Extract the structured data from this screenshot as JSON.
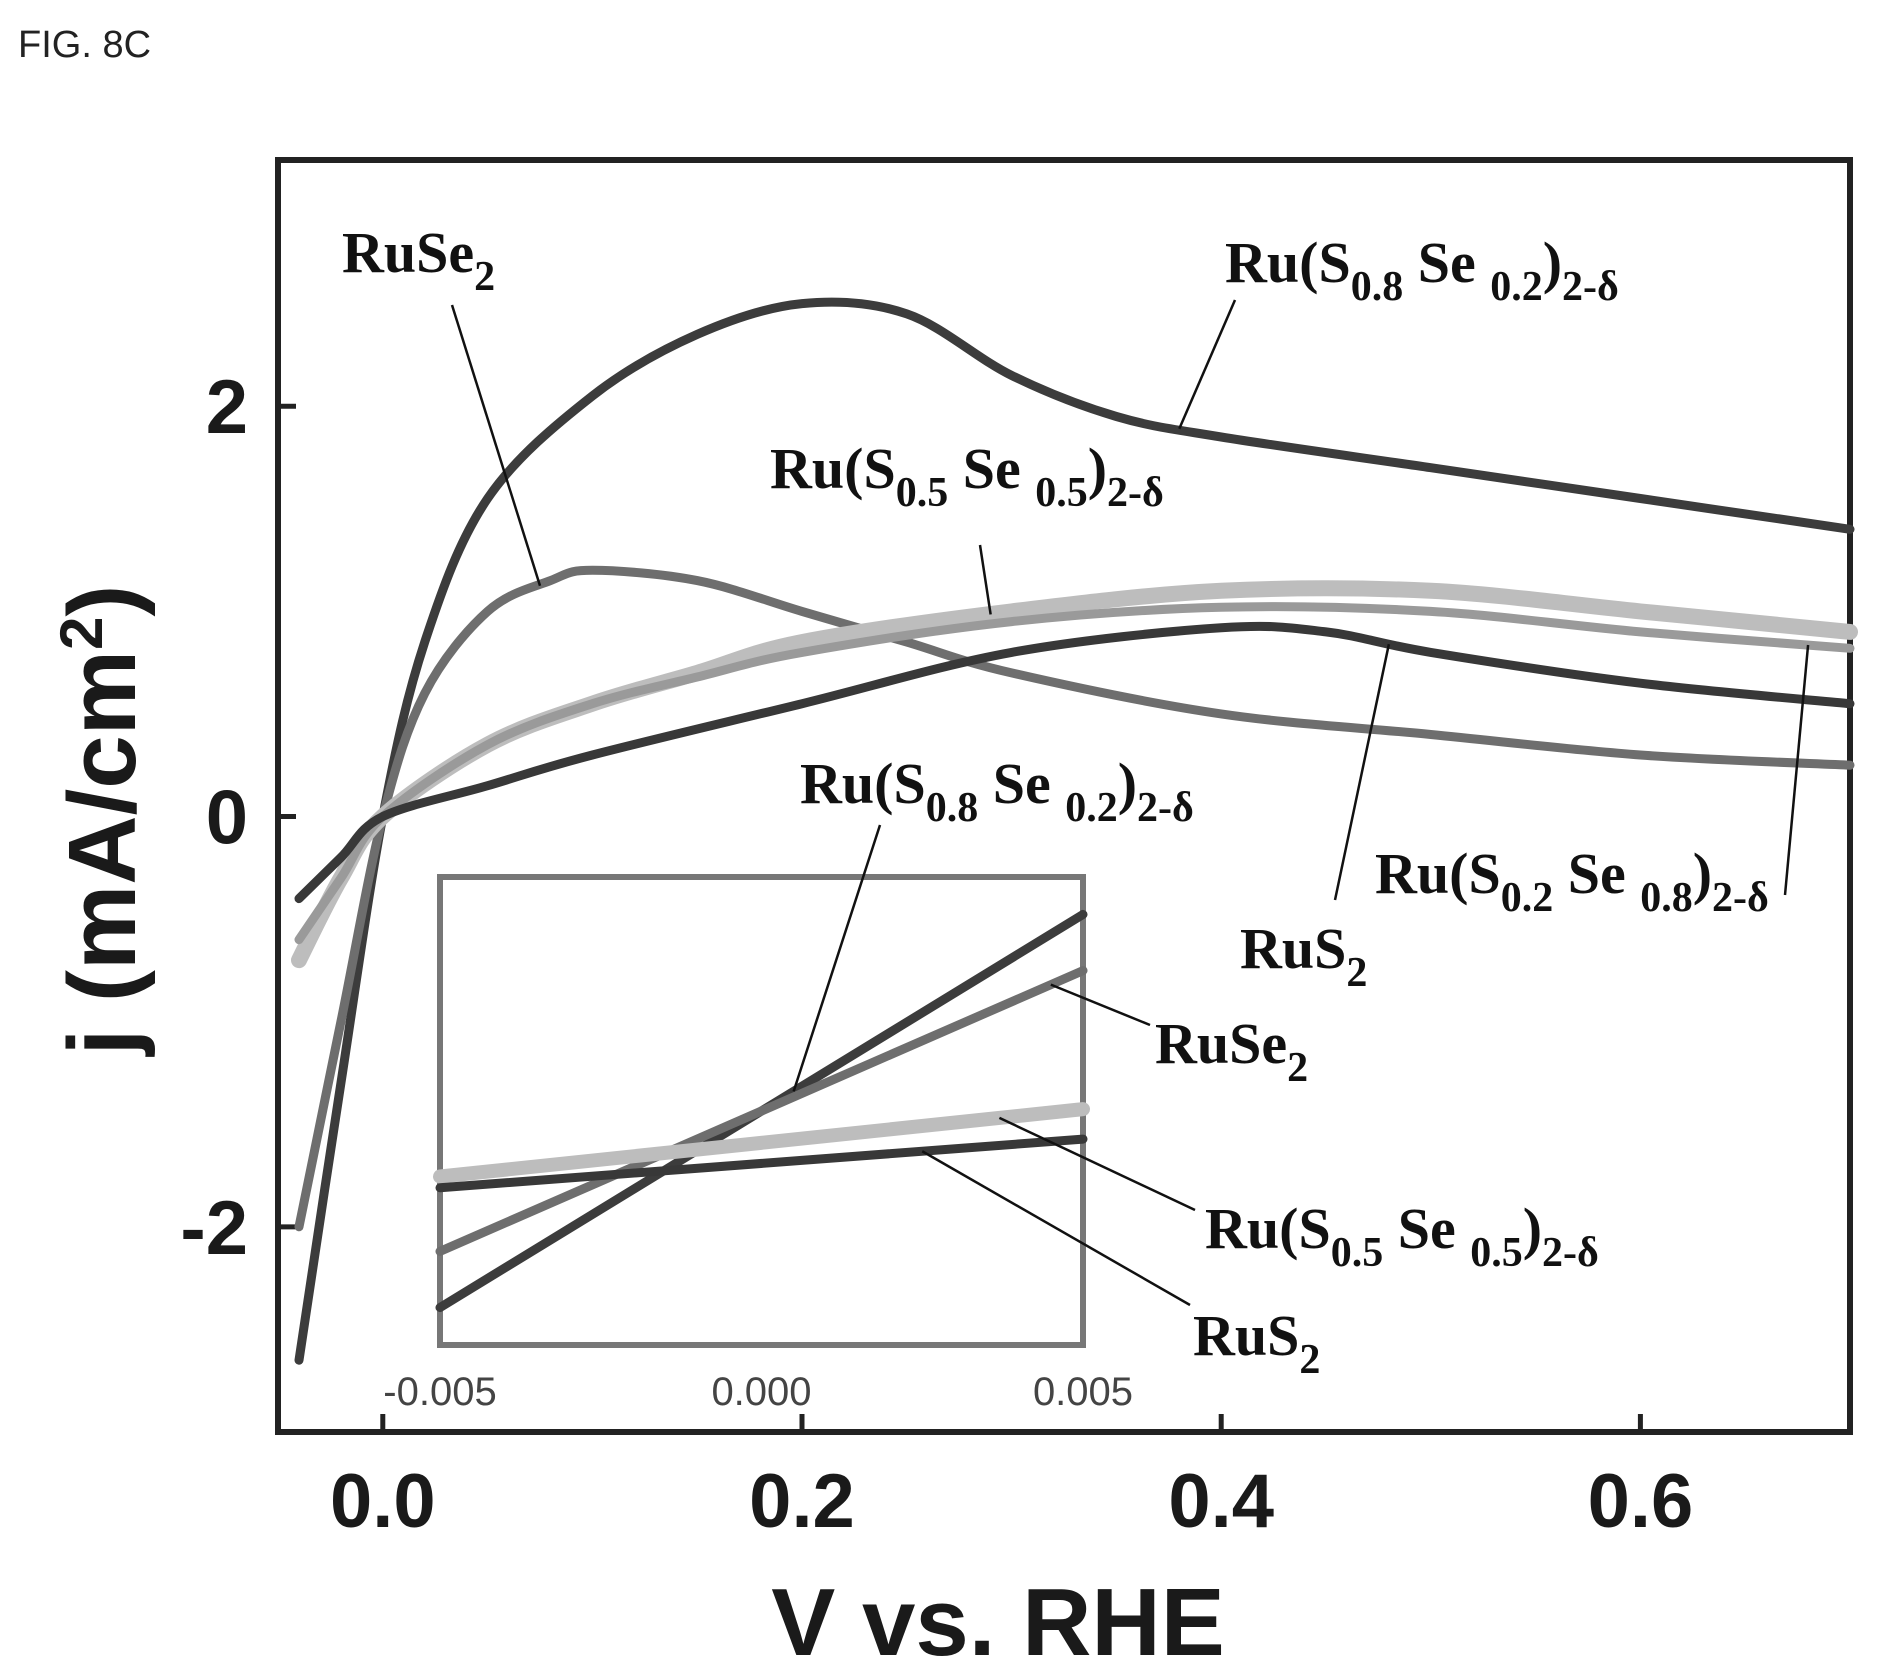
{
  "figure_label": "FIG. 8C",
  "colors": {
    "ruse2": "#6e6e6e",
    "rus2": "#383838",
    "ru_s08_se02": "#3c3c3c",
    "ru_s05_se05": "#bdbdbd",
    "ru_s02_se08": "#9a9a9a"
  },
  "chart_data": [
    {
      "type": "line",
      "title": "",
      "xlabel": "V vs. RHE",
      "ylabel": "j (mA/cm2)",
      "ylabel_parts": {
        "main": "j (mA/cm",
        "sup": "2",
        "close": ")"
      },
      "xlim": [
        -0.05,
        0.7
      ],
      "ylim": [
        -3,
        3.2
      ],
      "x_ticks": [
        0.0,
        0.2,
        0.4,
        0.6
      ],
      "x_tick_labels": [
        "0.0",
        "0.2",
        "0.4",
        "0.6"
      ],
      "y_ticks": [
        -2,
        0,
        2
      ],
      "y_tick_labels": [
        "-2",
        "0",
        "2"
      ],
      "grid": false,
      "legend": "none",
      "series": [
        {
          "key": "ru_s08_se02",
          "label": {
            "pre": "Ru(S",
            "s1": "0.8",
            "mid": " Se ",
            "s2": "0.2",
            "post": ")",
            "s3": "2-δ"
          },
          "x": [
            -0.04,
            -0.02,
            0.0,
            0.02,
            0.05,
            0.1,
            0.15,
            0.2,
            0.25,
            0.3,
            0.35,
            0.4,
            0.5,
            0.6,
            0.7
          ],
          "y": [
            -2.65,
            -1.3,
            0.0,
            0.85,
            1.55,
            2.05,
            2.35,
            2.5,
            2.45,
            2.15,
            1.95,
            1.85,
            1.7,
            1.55,
            1.4
          ]
        },
        {
          "key": "ruse2",
          "label": {
            "pre": "RuSe",
            "s1": "2"
          },
          "x": [
            -0.04,
            -0.02,
            0.0,
            0.02,
            0.05,
            0.08,
            0.1,
            0.15,
            0.2,
            0.25,
            0.3,
            0.4,
            0.5,
            0.6,
            0.7
          ],
          "y": [
            -2.0,
            -1.0,
            0.0,
            0.6,
            1.0,
            1.15,
            1.2,
            1.15,
            1.0,
            0.85,
            0.7,
            0.5,
            0.4,
            0.3,
            0.25
          ]
        },
        {
          "key": "ru_s05_se05",
          "label": {
            "pre": "Ru(S",
            "s1": "0.5",
            "mid": " Se ",
            "s2": "0.5",
            "post": ")",
            "s3": "2-δ"
          },
          "x": [
            -0.04,
            -0.02,
            0.0,
            0.05,
            0.1,
            0.15,
            0.2,
            0.3,
            0.4,
            0.5,
            0.6,
            0.7
          ],
          "y": [
            -0.7,
            -0.3,
            0.0,
            0.35,
            0.55,
            0.7,
            0.85,
            1.0,
            1.1,
            1.1,
            1.0,
            0.9
          ]
        },
        {
          "key": "ru_s02_se08",
          "label": {
            "pre": "Ru(S",
            "s1": "0.2",
            "mid": " Se ",
            "s2": "0.8",
            "post": ")",
            "s3": "2-δ"
          },
          "x": [
            -0.04,
            -0.02,
            0.0,
            0.05,
            0.1,
            0.15,
            0.2,
            0.3,
            0.4,
            0.5,
            0.6,
            0.7
          ],
          "y": [
            -0.6,
            -0.3,
            0.0,
            0.35,
            0.55,
            0.68,
            0.8,
            0.95,
            1.02,
            1.0,
            0.9,
            0.82
          ]
        },
        {
          "key": "rus2",
          "label": {
            "pre": "RuS",
            "s1": "2"
          },
          "x": [
            -0.04,
            -0.02,
            0.0,
            0.05,
            0.1,
            0.2,
            0.3,
            0.4,
            0.45,
            0.5,
            0.6,
            0.7
          ],
          "y": [
            -0.4,
            -0.2,
            0.0,
            0.15,
            0.3,
            0.55,
            0.8,
            0.92,
            0.9,
            0.8,
            0.65,
            0.55
          ]
        }
      ],
      "callouts": [
        {
          "series": "ruse2",
          "text": {
            "pre": "RuSe",
            "s1": "2"
          }
        },
        {
          "series": "ru_s08_se02",
          "text": {
            "pre": "Ru(S",
            "s1": "0.8",
            "mid": " Se ",
            "s2": "0.2",
            "post": ")",
            "s3": "2-δ"
          }
        },
        {
          "series": "ru_s05_se05",
          "text": {
            "pre": "Ru(S",
            "s1": "0.5",
            "mid": " Se ",
            "s2": "0.5",
            "post": ")",
            "s3": "2-δ"
          }
        },
        {
          "series": "ru_s02_se08",
          "text": {
            "pre": "Ru(S",
            "s1": "0.2",
            "mid": " Se ",
            "s2": "0.8",
            "post": ")",
            "s3": "2-δ"
          }
        },
        {
          "series": "rus2",
          "text": {
            "pre": "RuS",
            "s1": "2"
          }
        }
      ]
    },
    {
      "type": "line",
      "inset": true,
      "xlim": [
        -0.005,
        0.005
      ],
      "ylim": [
        -0.65,
        0.6
      ],
      "x_ticks": [
        -0.005,
        0.0,
        0.005
      ],
      "x_tick_labels": [
        "-0.005",
        "0.000",
        "0.005"
      ],
      "series": [
        {
          "key": "ru_s08_se02",
          "x": [
            -0.005,
            0.005
          ],
          "y": [
            -0.55,
            0.5
          ]
        },
        {
          "key": "ruse2",
          "x": [
            -0.005,
            0.005
          ],
          "y": [
            -0.4,
            0.35
          ]
        },
        {
          "key": "ru_s05_se05",
          "x": [
            -0.005,
            0.005
          ],
          "y": [
            -0.2,
            -0.02
          ]
        },
        {
          "key": "rus2",
          "x": [
            -0.005,
            0.005
          ],
          "y": [
            -0.23,
            -0.1
          ]
        }
      ],
      "callouts": [
        {
          "series": "ru_s08_se02",
          "text": {
            "pre": "Ru(S",
            "s1": "0.8",
            "mid": " Se ",
            "s2": "0.2",
            "post": ")",
            "s3": "2-δ"
          }
        },
        {
          "series": "ruse2",
          "text": {
            "pre": "RuSe",
            "s1": "2"
          }
        },
        {
          "series": "ru_s05_se05",
          "text": {
            "pre": "Ru(S",
            "s1": "0.5",
            "mid": " Se ",
            "s2": "0.5",
            "post": ")",
            "s3": "2-δ"
          }
        },
        {
          "series": "rus2",
          "text": {
            "pre": "RuS",
            "s1": "2"
          }
        }
      ]
    }
  ]
}
